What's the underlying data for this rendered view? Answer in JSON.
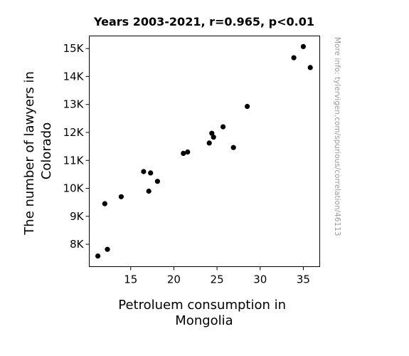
{
  "chart_data": {
    "type": "scatter",
    "title": "Years 2003-2021, r=0.965, p<0.01",
    "xlabel": [
      "Petroluem consumption in",
      "Mongolia"
    ],
    "ylabel": [
      "The number of lawyers in",
      "Colorado"
    ],
    "xlim": [
      10.2,
      36.9
    ],
    "ylim": [
      7200,
      15450
    ],
    "xticks": [
      15,
      20,
      25,
      30,
      35
    ],
    "xtick_labels": [
      "15",
      "20",
      "25",
      "30",
      "35"
    ],
    "yticks": [
      8000,
      9000,
      10000,
      11000,
      12000,
      13000,
      14000,
      15000
    ],
    "ytick_labels": [
      "8K",
      "9K",
      "10K",
      "11K",
      "12K",
      "13K",
      "14K",
      "15K"
    ],
    "grid": false,
    "legend": false,
    "marker_color": "#000000",
    "points": [
      {
        "x": 11.2,
        "y": 7580
      },
      {
        "x": 12.3,
        "y": 7820
      },
      {
        "x": 12.0,
        "y": 9450
      },
      {
        "x": 13.9,
        "y": 9700
      },
      {
        "x": 16.5,
        "y": 10600
      },
      {
        "x": 17.3,
        "y": 10550
      },
      {
        "x": 17.1,
        "y": 9900
      },
      {
        "x": 18.1,
        "y": 10250
      },
      {
        "x": 21.1,
        "y": 11250
      },
      {
        "x": 21.6,
        "y": 11300
      },
      {
        "x": 24.1,
        "y": 11620
      },
      {
        "x": 24.4,
        "y": 11970
      },
      {
        "x": 24.6,
        "y": 11830
      },
      {
        "x": 25.7,
        "y": 12200
      },
      {
        "x": 26.9,
        "y": 11460
      },
      {
        "x": 28.5,
        "y": 12930
      },
      {
        "x": 33.9,
        "y": 14670
      },
      {
        "x": 35.0,
        "y": 15070
      },
      {
        "x": 35.8,
        "y": 14320
      }
    ]
  },
  "watermark": "More info: tylervigen.com/spurious/correlation/46113"
}
